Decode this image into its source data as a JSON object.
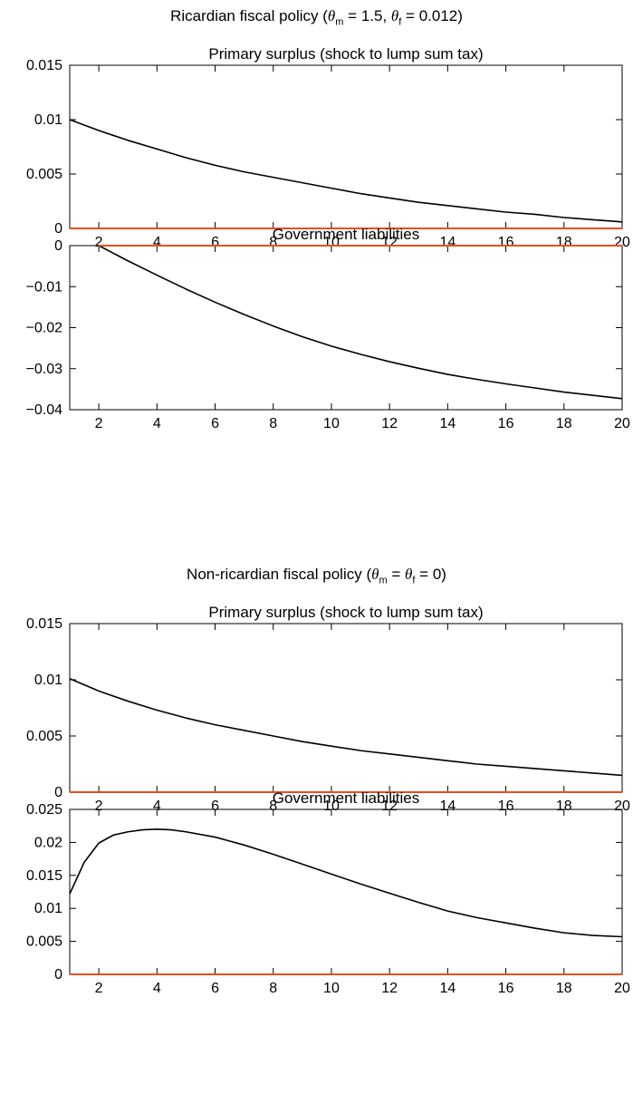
{
  "sections": [
    {
      "title_prefix": "Ricardian fiscal policy (",
      "theta_symbol": "θ",
      "sub_m": "m",
      "eq_m": " = 1.5, ",
      "sub_f": "f",
      "eq_f": " = 0.012)"
    },
    {
      "title_prefix": "Non-ricardian fiscal policy (",
      "theta_symbol": "θ",
      "sub_m": "m",
      "eq_m": " = ",
      "sub_f": "f",
      "eq_f": " = 0)"
    }
  ],
  "colors": {
    "response_line": "#000000",
    "zero_line": "#e8501e",
    "axes": "#000000"
  },
  "chart_data": [
    {
      "type": "line",
      "title": "Primary surplus (shock to lump sum tax)",
      "xlim": [
        1,
        20
      ],
      "ylim": [
        0,
        0.015
      ],
      "xticks": [
        2,
        4,
        6,
        8,
        10,
        12,
        14,
        16,
        18,
        20
      ],
      "xtick_labels": [
        "2",
        "4",
        "6",
        "8",
        "10",
        "12",
        "14",
        "16",
        "18",
        "20"
      ],
      "yticks": [
        0,
        0.005,
        0.01,
        0.015
      ],
      "ytick_labels": [
        "0",
        "0.005",
        "0.01",
        "0.015"
      ],
      "x": [
        1,
        2,
        3,
        4,
        5,
        6,
        7,
        8,
        9,
        10,
        11,
        12,
        13,
        14,
        15,
        16,
        17,
        18,
        19,
        20
      ],
      "series": [
        {
          "values": [
            0.01,
            0.009,
            0.0081,
            0.0073,
            0.0065,
            0.0058,
            0.0052,
            0.0047,
            0.0042,
            0.0037,
            0.0032,
            0.0028,
            0.0024,
            0.0021,
            0.0018,
            0.0015,
            0.0013,
            0.001,
            0.0008,
            0.0006
          ],
          "color": "#000000"
        },
        {
          "values": [
            0,
            0,
            0,
            0,
            0,
            0,
            0,
            0,
            0,
            0,
            0,
            0,
            0,
            0,
            0,
            0,
            0,
            0,
            0,
            0
          ],
          "color": "#e8501e"
        }
      ]
    },
    {
      "type": "line",
      "title": "Government liabilities",
      "xlim": [
        1,
        20
      ],
      "ylim": [
        -0.04,
        0
      ],
      "xticks": [
        2,
        4,
        6,
        8,
        10,
        12,
        14,
        16,
        18,
        20
      ],
      "xtick_labels": [
        "2",
        "4",
        "6",
        "8",
        "10",
        "12",
        "14",
        "16",
        "18",
        "20"
      ],
      "yticks": [
        -0.04,
        -0.03,
        -0.02,
        -0.01,
        0
      ],
      "ytick_labels": [
        "−0.04",
        "−0.03",
        "−0.02",
        "−0.01",
        "0"
      ],
      "x": [
        2,
        3,
        4,
        5,
        6,
        7,
        8,
        9,
        10,
        11,
        12,
        13,
        14,
        15,
        16,
        17,
        18,
        19,
        20
      ],
      "series": [
        {
          "values": [
            0,
            -0.0037,
            -0.0072,
            -0.0106,
            -0.0138,
            -0.0168,
            -0.0196,
            -0.0222,
            -0.0245,
            -0.0265,
            -0.0283,
            -0.0299,
            -0.0314,
            -0.0326,
            -0.0337,
            -0.0347,
            -0.0357,
            -0.0365,
            -0.0373
          ],
          "color": "#000000"
        },
        {
          "values": [
            0,
            0,
            0,
            0,
            0,
            0,
            0,
            0,
            0,
            0,
            0,
            0,
            0,
            0,
            0,
            0,
            0,
            0,
            0
          ],
          "color": "#e8501e"
        }
      ]
    },
    {
      "type": "line",
      "title": "Primary surplus (shock to lump sum tax)",
      "xlim": [
        1,
        20
      ],
      "ylim": [
        0,
        0.015
      ],
      "xticks": [
        2,
        4,
        6,
        8,
        10,
        12,
        14,
        16,
        18,
        20
      ],
      "xtick_labels": [
        "2",
        "4",
        "6",
        "8",
        "10",
        "12",
        "14",
        "16",
        "18",
        "20"
      ],
      "yticks": [
        0,
        0.005,
        0.01,
        0.015
      ],
      "ytick_labels": [
        "0",
        "0.005",
        "0.01",
        "0.015"
      ],
      "x": [
        1,
        2,
        3,
        4,
        5,
        6,
        7,
        8,
        9,
        10,
        11,
        12,
        13,
        14,
        15,
        16,
        17,
        18,
        19,
        20
      ],
      "series": [
        {
          "values": [
            0.0101,
            0.009,
            0.0081,
            0.0073,
            0.0066,
            0.006,
            0.0055,
            0.005,
            0.0045,
            0.0041,
            0.0037,
            0.0034,
            0.0031,
            0.0028,
            0.0025,
            0.0023,
            0.0021,
            0.0019,
            0.0017,
            0.0015
          ],
          "color": "#000000"
        },
        {
          "values": [
            0,
            0,
            0,
            0,
            0,
            0,
            0,
            0,
            0,
            0,
            0,
            0,
            0,
            0,
            0,
            0,
            0,
            0,
            0,
            0
          ],
          "color": "#e8501e"
        }
      ]
    },
    {
      "type": "line",
      "title": "Government liabilities",
      "xlim": [
        1,
        20
      ],
      "ylim": [
        0,
        0.025
      ],
      "xticks": [
        2,
        4,
        6,
        8,
        10,
        12,
        14,
        16,
        18,
        20
      ],
      "xtick_labels": [
        "2",
        "4",
        "6",
        "8",
        "10",
        "12",
        "14",
        "16",
        "18",
        "20"
      ],
      "yticks": [
        0,
        0.005,
        0.01,
        0.015,
        0.02,
        0.025
      ],
      "ytick_labels": [
        "0",
        "0.005",
        "0.01",
        "0.015",
        "0.02",
        "0.025"
      ],
      "x": [
        1,
        1.5,
        2,
        2.5,
        3,
        3.5,
        4,
        4.5,
        5,
        6,
        7,
        8,
        9,
        10,
        11,
        12,
        13,
        14,
        15,
        16,
        17,
        18,
        19,
        20
      ],
      "series": [
        {
          "values": [
            0.0122,
            0.017,
            0.0199,
            0.0211,
            0.0216,
            0.0219,
            0.022,
            0.0219,
            0.0216,
            0.0208,
            0.0196,
            0.0182,
            0.0167,
            0.0152,
            0.0137,
            0.0123,
            0.0109,
            0.0096,
            0.0086,
            0.0078,
            0.007,
            0.0063,
            0.0059,
            0.0057
          ],
          "color": "#000000"
        },
        {
          "values": [
            0,
            0,
            0,
            0,
            0,
            0,
            0,
            0,
            0,
            0,
            0,
            0,
            0,
            0,
            0,
            0,
            0,
            0,
            0,
            0,
            0,
            0,
            0,
            0
          ],
          "color": "#e8501e"
        }
      ]
    }
  ]
}
